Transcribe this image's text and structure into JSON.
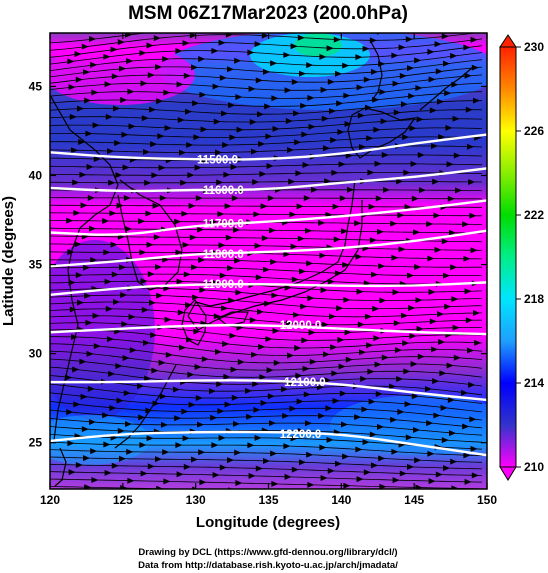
{
  "title": "MSM 06Z17Mar2023 (200.0hPa)",
  "xlabel": "Longitude (degrees)",
  "ylabel": "Latitude  (degrees)",
  "x_ticks": [
    "120",
    "125",
    "130",
    "135",
    "140",
    "145",
    "150"
  ],
  "y_ticks": [
    "25",
    "30",
    "35",
    "40",
    "45"
  ],
  "colorbar_ticks": [
    "210",
    "214",
    "218",
    "222",
    "226",
    "230"
  ],
  "credits": {
    "line1": "Drawing by DCL (https://www.gfd-dennou.org/library/dcl/)",
    "line2": "Data from http://database.rish.kyoto-u.ac.jp/arch/jmadata/"
  },
  "chart_data": {
    "type": "map",
    "variables": [
      "temperature (K, shaded)",
      "geopotential height (m, contours)",
      "wind (streamlines)"
    ],
    "xlim": [
      120,
      150
    ],
    "ylim": [
      22.4,
      48
    ],
    "colorbar_range": [
      210,
      230
    ],
    "colors": {
      "cb_210": "#ff00ff",
      "cb_212": "#3333cc",
      "cb_214": "#0000ff",
      "cb_216": "#1f9fff",
      "cb_218": "#00e5ff",
      "cb_220": "#00ee88",
      "cb_222": "#00dd00",
      "cb_224": "#88ee00",
      "cb_226": "#ffff00",
      "cb_228": "#ff8800",
      "cb_230": "#ff2200"
    },
    "height_contours": [
      {
        "label": "11500.0",
        "value": 11500,
        "points": [
          [
            120,
            41.3
          ],
          [
            125,
            41.0
          ],
          [
            130,
            40.9
          ],
          [
            135,
            40.9
          ],
          [
            140,
            41.2
          ],
          [
            145,
            41.8
          ],
          [
            150,
            42.3
          ]
        ],
        "label_at": [
          131.5,
          40.9
        ]
      },
      {
        "label": "11600.0",
        "value": 11600,
        "points": [
          [
            120,
            39.3
          ],
          [
            125,
            39.1
          ],
          [
            130,
            39.2
          ],
          [
            135,
            39.2
          ],
          [
            140,
            39.6
          ],
          [
            145,
            39.9
          ],
          [
            150,
            40.4
          ]
        ],
        "label_at": [
          131.9,
          39.2
        ]
      },
      {
        "label": "11700.0",
        "value": 11700,
        "points": [
          [
            120,
            36.8
          ],
          [
            125,
            36.6
          ],
          [
            130,
            37.2
          ],
          [
            135,
            37.4
          ],
          [
            140,
            37.7
          ],
          [
            145,
            38.1
          ],
          [
            150,
            38.6
          ]
        ],
        "label_at": [
          131.9,
          37.3
        ]
      },
      {
        "label": "11800.0",
        "value": 11800,
        "points": [
          [
            120,
            34.9
          ],
          [
            125,
            35.2
          ],
          [
            130,
            35.6
          ],
          [
            135,
            35.7
          ],
          [
            140,
            35.9
          ],
          [
            145,
            36.3
          ],
          [
            150,
            36.9
          ]
        ],
        "label_at": [
          131.9,
          35.6
        ]
      },
      {
        "label": "11900.0",
        "value": 11900,
        "points": [
          [
            120,
            33.3
          ],
          [
            125,
            33.7
          ],
          [
            130,
            33.9
          ],
          [
            135,
            33.9
          ],
          [
            140,
            33.8
          ],
          [
            145,
            33.8
          ],
          [
            150,
            34.0
          ]
        ],
        "label_at": [
          131.9,
          33.9
        ]
      },
      {
        "label": "12000.0",
        "value": 12000,
        "points": [
          [
            120,
            31.2
          ],
          [
            125,
            31.4
          ],
          [
            130,
            31.6
          ],
          [
            135,
            31.6
          ],
          [
            140,
            31.4
          ],
          [
            145,
            31.2
          ],
          [
            150,
            31.1
          ]
        ],
        "label_at": [
          137.2,
          31.6
        ]
      },
      {
        "label": "12100.0",
        "value": 12100,
        "points": [
          [
            120,
            28.4
          ],
          [
            125,
            28.4
          ],
          [
            130,
            28.5
          ],
          [
            135,
            28.5
          ],
          [
            140,
            28.3
          ],
          [
            145,
            27.8
          ],
          [
            150,
            27.4
          ]
        ],
        "label_at": [
          137.5,
          28.4
        ]
      },
      {
        "label": "12200.0",
        "value": 12200,
        "points": [
          [
            120,
            25.1
          ],
          [
            125,
            25.5
          ],
          [
            130,
            25.6
          ],
          [
            135,
            25.6
          ],
          [
            140,
            25.5
          ],
          [
            145,
            24.9
          ],
          [
            150,
            24.3
          ]
        ],
        "label_at": [
          137.2,
          25.5
        ]
      }
    ]
  }
}
